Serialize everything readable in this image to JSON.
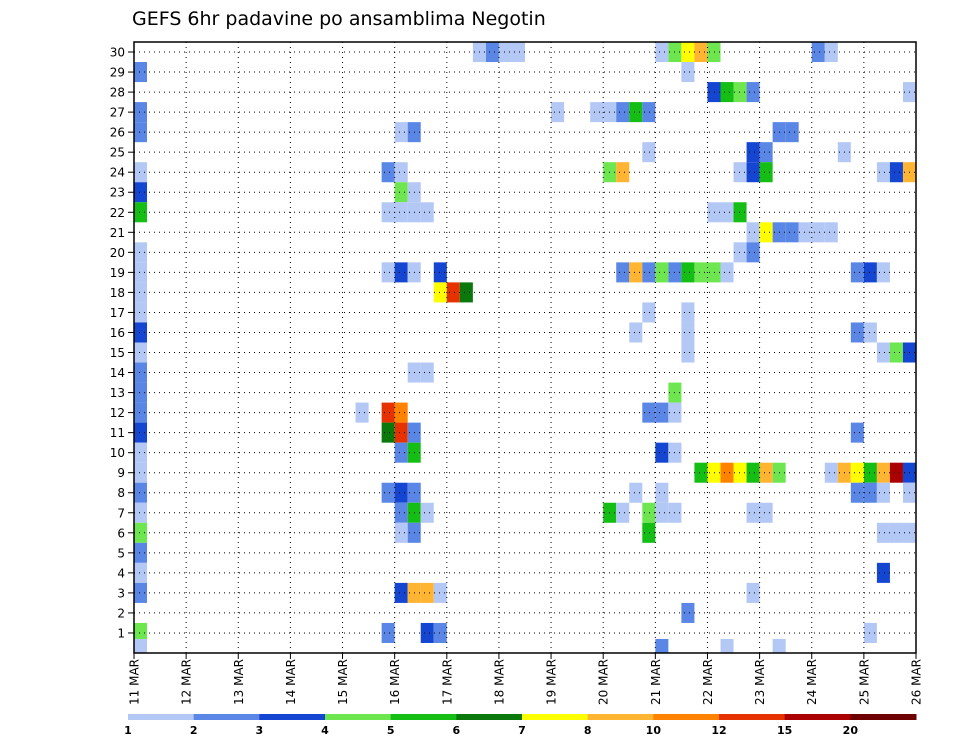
{
  "chart_data": {
    "type": "heatmap",
    "title": "GEFS 6hr padavine po ansamblima Negotin",
    "xlabel": "",
    "ylabel": "",
    "x_ticks": [
      "11 MAR",
      "12 MAR",
      "13 MAR",
      "14 MAR",
      "15 MAR",
      "16 MAR",
      "17 MAR",
      "18 MAR",
      "19 MAR",
      "20 MAR",
      "21 MAR",
      "22 MAR",
      "23 MAR",
      "24 MAR",
      "25 MAR",
      "26 MAR"
    ],
    "y_ticks": [
      "1",
      "2",
      "3",
      "4",
      "5",
      "6",
      "7",
      "8",
      "9",
      "10",
      "11",
      "12",
      "13",
      "14",
      "15",
      "16",
      "17",
      "18",
      "19",
      "20",
      "21",
      "22",
      "23",
      "24",
      "25",
      "26",
      "27",
      "28",
      "29",
      "30"
    ],
    "x_range": [
      "11 MAR 00Z",
      "26 MAR 00Z"
    ],
    "y_range": [
      0,
      30.5
    ],
    "time_step_hours": 6,
    "grid": true,
    "colorbar": {
      "labels": [
        "1",
        "2",
        "3",
        "4",
        "5",
        "6",
        "7",
        "8",
        "10",
        "12",
        "15",
        "20"
      ],
      "colors": [
        "#b4c8f5",
        "#5a87e6",
        "#1446d2",
        "#6ee650",
        "#14be14",
        "#0a780a",
        "#ffff00",
        "#ffb432",
        "#ff8200",
        "#e63200",
        "#aa0000",
        "#6e0000"
      ]
    },
    "cells_legend": "each cell = [member, 6h step index from 11 MAR 00Z, color class 1-12]",
    "cells": [
      [
        30,
        26,
        1
      ],
      [
        30,
        27,
        2
      ],
      [
        30,
        28,
        1
      ],
      [
        30,
        29,
        1
      ],
      [
        30,
        40,
        1
      ],
      [
        30,
        41,
        4
      ],
      [
        30,
        42,
        7
      ],
      [
        30,
        43,
        8
      ],
      [
        30,
        44,
        4
      ],
      [
        30,
        52,
        2
      ],
      [
        30,
        53,
        1
      ],
      [
        29,
        0,
        2
      ],
      [
        29,
        42,
        1
      ],
      [
        28,
        44,
        3
      ],
      [
        28,
        45,
        5
      ],
      [
        28,
        46,
        4
      ],
      [
        28,
        47,
        2
      ],
      [
        28,
        59,
        1
      ],
      [
        27,
        0,
        2
      ],
      [
        27,
        32,
        1
      ],
      [
        27,
        35,
        1
      ],
      [
        27,
        36,
        1
      ],
      [
        27,
        37,
        2
      ],
      [
        27,
        38,
        5
      ],
      [
        27,
        39,
        2
      ],
      [
        26,
        0,
        2
      ],
      [
        26,
        20,
        1
      ],
      [
        26,
        21,
        2
      ],
      [
        26,
        49,
        2
      ],
      [
        26,
        50,
        2
      ],
      [
        25,
        39,
        1
      ],
      [
        25,
        47,
        3
      ],
      [
        25,
        48,
        2
      ],
      [
        25,
        54,
        1
      ],
      [
        24,
        0,
        1
      ],
      [
        24,
        19,
        2
      ],
      [
        24,
        20,
        1
      ],
      [
        24,
        36,
        4
      ],
      [
        24,
        37,
        8
      ],
      [
        24,
        46,
        1
      ],
      [
        24,
        47,
        3
      ],
      [
        24,
        48,
        5
      ],
      [
        24,
        57,
        1
      ],
      [
        24,
        58,
        3
      ],
      [
        24,
        59,
        8
      ],
      [
        23,
        0,
        3
      ],
      [
        23,
        20,
        4
      ],
      [
        23,
        21,
        1
      ],
      [
        22,
        0,
        5
      ],
      [
        22,
        19,
        1
      ],
      [
        22,
        20,
        1
      ],
      [
        22,
        21,
        1
      ],
      [
        22,
        22,
        1
      ],
      [
        22,
        44,
        1
      ],
      [
        22,
        45,
        1
      ],
      [
        22,
        46,
        5
      ],
      [
        21,
        47,
        1
      ],
      [
        21,
        48,
        7
      ],
      [
        21,
        49,
        2
      ],
      [
        21,
        50,
        2
      ],
      [
        21,
        51,
        1
      ],
      [
        21,
        52,
        1
      ],
      [
        21,
        53,
        1
      ],
      [
        20,
        0,
        1
      ],
      [
        20,
        46,
        1
      ],
      [
        20,
        47,
        2
      ],
      [
        19,
        0,
        1
      ],
      [
        19,
        19,
        1
      ],
      [
        19,
        20,
        3
      ],
      [
        19,
        21,
        1
      ],
      [
        19,
        23,
        3
      ],
      [
        19,
        37,
        2
      ],
      [
        19,
        38,
        8
      ],
      [
        19,
        39,
        2
      ],
      [
        19,
        40,
        4
      ],
      [
        19,
        41,
        2
      ],
      [
        19,
        42,
        5
      ],
      [
        19,
        43,
        4
      ],
      [
        19,
        44,
        4
      ],
      [
        19,
        45,
        1
      ],
      [
        19,
        55,
        2
      ],
      [
        19,
        56,
        3
      ],
      [
        19,
        57,
        1
      ],
      [
        18,
        0,
        1
      ],
      [
        18,
        23,
        7
      ],
      [
        18,
        24,
        10
      ],
      [
        18,
        25,
        6
      ],
      [
        17,
        0,
        1
      ],
      [
        17,
        39,
        1
      ],
      [
        17,
        42,
        1
      ],
      [
        16,
        0,
        3
      ],
      [
        16,
        38,
        1
      ],
      [
        16,
        42,
        1
      ],
      [
        16,
        55,
        2
      ],
      [
        16,
        56,
        1
      ],
      [
        15,
        0,
        1
      ],
      [
        15,
        42,
        1
      ],
      [
        15,
        57,
        1
      ],
      [
        15,
        58,
        4
      ],
      [
        15,
        59,
        3
      ],
      [
        14,
        0,
        2
      ],
      [
        14,
        21,
        1
      ],
      [
        14,
        22,
        1
      ],
      [
        13,
        0,
        2
      ],
      [
        13,
        41,
        4
      ],
      [
        12,
        0,
        2
      ],
      [
        12,
        17,
        1
      ],
      [
        12,
        19,
        10
      ],
      [
        12,
        20,
        9
      ],
      [
        12,
        39,
        2
      ],
      [
        12,
        40,
        2
      ],
      [
        12,
        41,
        1
      ],
      [
        11,
        0,
        3
      ],
      [
        11,
        19,
        6
      ],
      [
        11,
        20,
        10
      ],
      [
        11,
        21,
        2
      ],
      [
        11,
        55,
        2
      ],
      [
        10,
        0,
        1
      ],
      [
        10,
        20,
        2
      ],
      [
        10,
        21,
        5
      ],
      [
        10,
        40,
        3
      ],
      [
        10,
        41,
        1
      ],
      [
        9,
        0,
        1
      ],
      [
        9,
        43,
        5
      ],
      [
        9,
        44,
        7
      ],
      [
        9,
        45,
        9
      ],
      [
        9,
        46,
        7
      ],
      [
        9,
        47,
        5
      ],
      [
        9,
        48,
        8
      ],
      [
        9,
        49,
        4
      ],
      [
        9,
        53,
        1
      ],
      [
        9,
        54,
        8
      ],
      [
        9,
        55,
        7
      ],
      [
        9,
        56,
        5
      ],
      [
        9,
        57,
        8
      ],
      [
        9,
        58,
        11
      ],
      [
        9,
        59,
        3
      ],
      [
        8,
        0,
        2
      ],
      [
        8,
        19,
        2
      ],
      [
        8,
        20,
        3
      ],
      [
        8,
        21,
        2
      ],
      [
        8,
        38,
        1
      ],
      [
        8,
        40,
        1
      ],
      [
        8,
        55,
        2
      ],
      [
        8,
        56,
        2
      ],
      [
        8,
        57,
        1
      ],
      [
        8,
        59,
        1
      ],
      [
        7,
        0,
        1
      ],
      [
        7,
        20,
        2
      ],
      [
        7,
        21,
        5
      ],
      [
        7,
        22,
        1
      ],
      [
        7,
        36,
        5
      ],
      [
        7,
        37,
        1
      ],
      [
        7,
        39,
        4
      ],
      [
        7,
        40,
        1
      ],
      [
        7,
        41,
        1
      ],
      [
        7,
        47,
        1
      ],
      [
        7,
        48,
        1
      ],
      [
        6,
        0,
        4
      ],
      [
        6,
        20,
        1
      ],
      [
        6,
        21,
        2
      ],
      [
        6,
        39,
        5
      ],
      [
        6,
        57,
        1
      ],
      [
        6,
        58,
        1
      ],
      [
        6,
        59,
        1
      ],
      [
        5,
        0,
        2
      ],
      [
        4,
        0,
        1
      ],
      [
        4,
        57,
        3
      ],
      [
        3,
        0,
        2
      ],
      [
        3,
        20,
        3
      ],
      [
        3,
        21,
        8
      ],
      [
        3,
        22,
        8
      ],
      [
        3,
        23,
        1
      ],
      [
        3,
        47,
        1
      ],
      [
        2,
        42,
        2
      ],
      [
        1,
        0,
        4
      ],
      [
        1,
        19,
        2
      ],
      [
        1,
        22,
        3
      ],
      [
        1,
        23,
        2
      ],
      [
        1,
        56,
        1
      ],
      [
        0.2,
        0,
        1
      ],
      [
        0.2,
        40,
        2
      ],
      [
        0.2,
        45,
        1
      ],
      [
        0.2,
        49,
        1
      ]
    ]
  }
}
